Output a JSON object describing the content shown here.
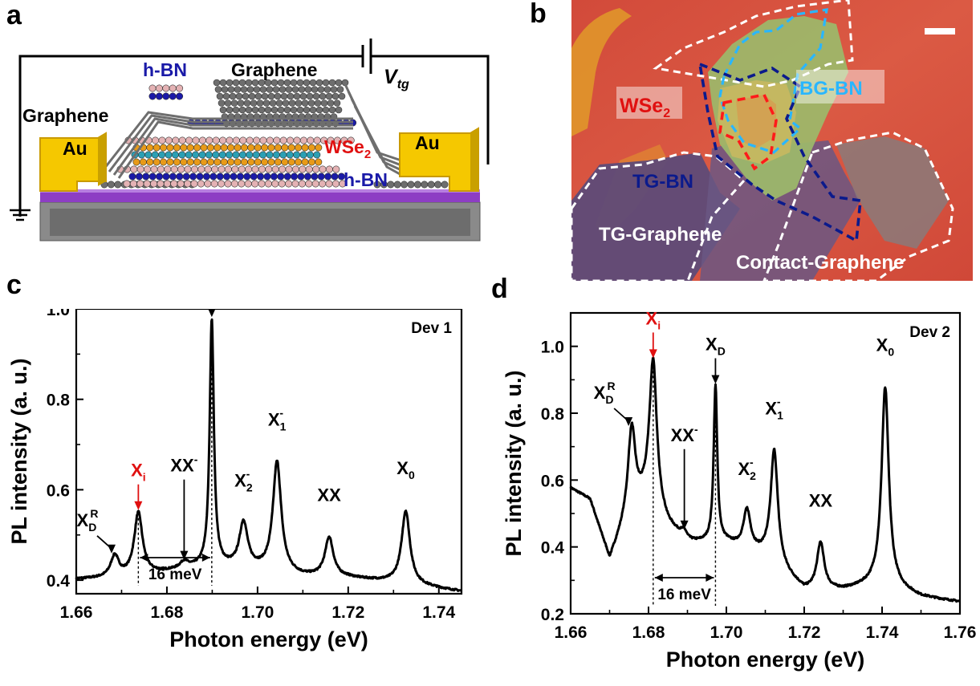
{
  "panels": {
    "a": {
      "letter": "a",
      "labels": {
        "hbn_top": "h-BN",
        "graphene_top": "Graphene",
        "vtg": "V",
        "vtg_sub": "tg",
        "graphene_left": "Graphene",
        "au_left": "Au",
        "au_right": "Au",
        "wse": "WSe",
        "wse_sub": "2",
        "hbn_bottom": "h-BN"
      },
      "colors": {
        "au": "#f5c800",
        "hbn_dot": "#1a1aa8",
        "hbn_pink": "#e4b2b4",
        "graphene": "#6e6e6e",
        "wse_orange": "#e89a18",
        "wse_teal": "#2a9fb4",
        "substrate": "#8a8a8a",
        "oxide": "#8d3dc4"
      }
    },
    "b": {
      "letter": "b",
      "labels": {
        "wse": "WSe",
        "wse_sub": "2",
        "bg_bn": "BG-BN",
        "tg_bn": "TG-BN",
        "tg_graphene": "TG-Graphene",
        "contact_graphene": "Contact-Graphene"
      },
      "colors": {
        "background": "#d8523e",
        "wse_outline": "#ff1a1a",
        "bgbn_outline": "#29b6ff",
        "tgbn_outline": "#0b1a8c",
        "graphene_outline": "#ffffff"
      }
    },
    "c": {
      "letter": "c",
      "device": "Dev 1"
    },
    "d": {
      "letter": "d",
      "device": "Dev 2"
    }
  },
  "chart_data": [
    {
      "type": "line",
      "panel": "c",
      "xlabel": "Photon energy (eV)",
      "ylabel": "PL intensity (a. u.)",
      "xlim": [
        1.66,
        1.745
      ],
      "ylim": [
        0.37,
        1.0
      ],
      "xticks": [
        1.66,
        1.68,
        1.7,
        1.72,
        1.74
      ],
      "xtick_labels": [
        "1.66",
        "1.68",
        "1.70",
        "1.72",
        "1.74"
      ],
      "yticks": [
        0.4,
        0.6,
        0.8,
        1.0
      ],
      "ytick_labels": [
        "0.4",
        "0.6",
        "0.8",
        "1.0"
      ],
      "annotation": "Dev 1",
      "baseline": [
        [
          1.66,
          0.402
        ],
        [
          1.67,
          0.405
        ],
        [
          1.68,
          0.418
        ],
        [
          1.69,
          0.43
        ],
        [
          1.7,
          0.422
        ],
        [
          1.71,
          0.408
        ],
        [
          1.72,
          0.405
        ],
        [
          1.73,
          0.395
        ],
        [
          1.745,
          0.375
        ]
      ],
      "peaks": [
        {
          "label": "X",
          "sub": "D",
          "sup": "R",
          "x": 1.6685,
          "y": 0.452
        },
        {
          "label": "X",
          "sub": "i",
          "sup": "",
          "x": 1.6737,
          "y": 0.548,
          "color": "#e01010"
        },
        {
          "label": "XX",
          "sub": "",
          "sup": "-",
          "x": 1.6838,
          "y": 0.438
        },
        {
          "label": "X",
          "sub": "D",
          "sup": "",
          "x": 1.6899,
          "y": 0.975
        },
        {
          "label": "X",
          "sub": "2",
          "sup": "-",
          "x": 1.6969,
          "y": 0.525
        },
        {
          "label": "X",
          "sub": "1",
          "sup": "-",
          "x": 1.7043,
          "y": 0.66
        },
        {
          "label": "XX",
          "sub": "",
          "sup": "",
          "x": 1.7158,
          "y": 0.493
        },
        {
          "label": "X",
          "sub": "0",
          "sup": "",
          "x": 1.7327,
          "y": 0.553
        }
      ],
      "separation_label": "16 meV",
      "separation_x": [
        1.6737,
        1.6899
      ]
    },
    {
      "type": "line",
      "panel": "d",
      "xlabel": "Photon energy (eV)",
      "ylabel": "PL intensity (a. u.)",
      "xlim": [
        1.66,
        1.76
      ],
      "ylim": [
        0.2,
        1.1
      ],
      "xticks": [
        1.66,
        1.68,
        1.7,
        1.72,
        1.74,
        1.76
      ],
      "xtick_labels": [
        "1.66",
        "1.68",
        "1.70",
        "1.72",
        "1.74",
        "1.76"
      ],
      "yticks": [
        0.2,
        0.4,
        0.6,
        0.8,
        1.0
      ],
      "ytick_labels": [
        "0.2",
        "0.4",
        "0.6",
        "0.8",
        "1.0"
      ],
      "annotation": "Dev 2",
      "baseline": [
        [
          1.66,
          0.575
        ],
        [
          1.665,
          0.54
        ],
        [
          1.67,
          0.36
        ],
        [
          1.675,
          0.5
        ],
        [
          1.68,
          0.55
        ],
        [
          1.685,
          0.46
        ],
        [
          1.69,
          0.41
        ],
        [
          1.7,
          0.41
        ],
        [
          1.71,
          0.37
        ],
        [
          1.72,
          0.27
        ],
        [
          1.73,
          0.27
        ],
        [
          1.74,
          0.29
        ],
        [
          1.75,
          0.25
        ],
        [
          1.76,
          0.235
        ]
      ],
      "peaks": [
        {
          "label": "X",
          "sub": "D",
          "sup": "R",
          "x": 1.6757,
          "y": 0.752
        },
        {
          "label": "X",
          "sub": "i",
          "sup": "",
          "x": 1.6812,
          "y": 0.955,
          "color": "#e01010"
        },
        {
          "label": "XX",
          "sub": "",
          "sup": "-",
          "x": 1.6892,
          "y": 0.443
        },
        {
          "label": "X",
          "sub": "D",
          "sup": "",
          "x": 1.6972,
          "y": 0.878
        },
        {
          "label": "X",
          "sub": "2",
          "sup": "-",
          "x": 1.7053,
          "y": 0.505
        },
        {
          "label": "X",
          "sub": "1",
          "sup": "-",
          "x": 1.7123,
          "y": 0.686
        },
        {
          "label": "XX",
          "sub": "",
          "sup": "",
          "x": 1.7242,
          "y": 0.41
        },
        {
          "label": "X",
          "sub": "0",
          "sup": "",
          "x": 1.7408,
          "y": 0.876
        }
      ],
      "separation_label": "16 meV",
      "separation_x": [
        1.6812,
        1.6972
      ]
    }
  ]
}
